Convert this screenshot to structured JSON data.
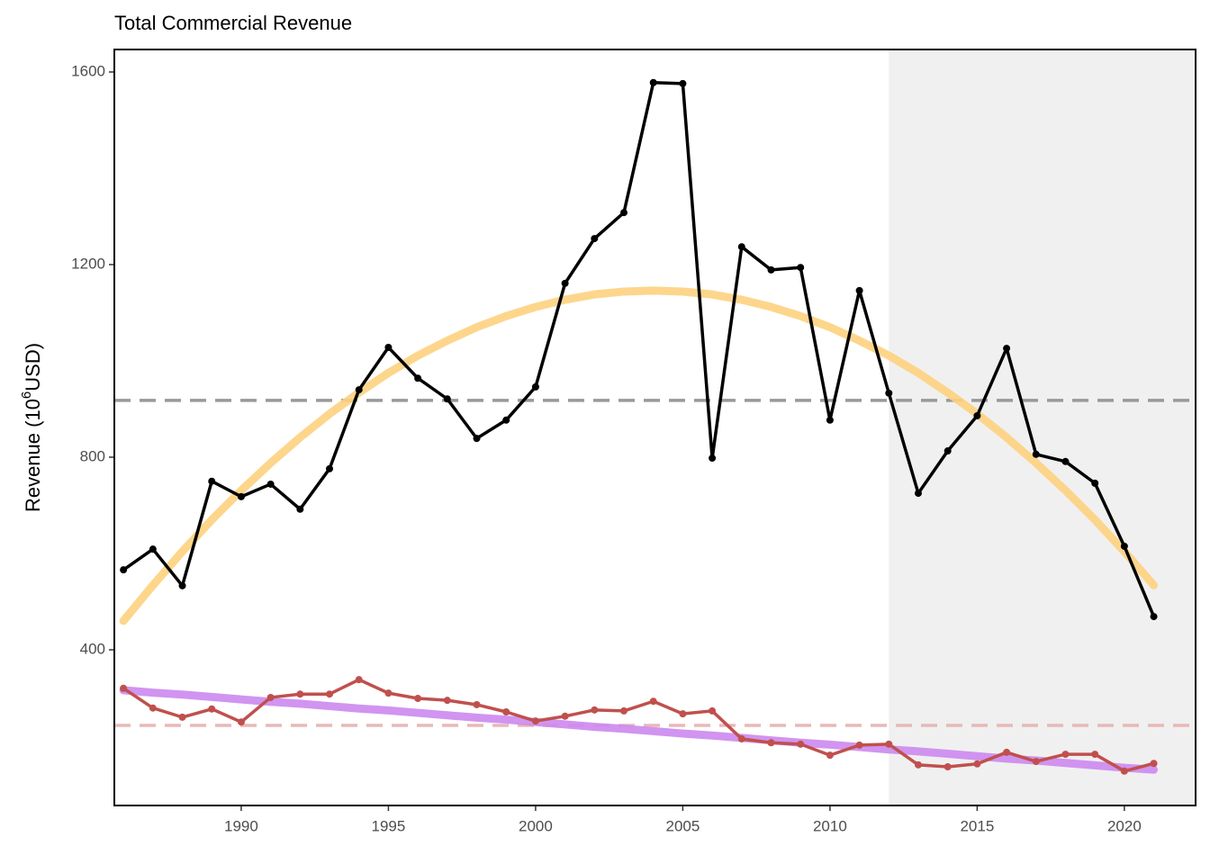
{
  "chart_data": {
    "type": "line",
    "title": "Total Commercial Revenue",
    "ylabel": [
      "Revenue (10",
      "6",
      "USD)"
    ],
    "x": [
      1986,
      1987,
      1988,
      1989,
      1990,
      1991,
      1992,
      1993,
      1994,
      1995,
      1996,
      1997,
      1998,
      1999,
      2000,
      2001,
      2002,
      2003,
      2004,
      2005,
      2006,
      2007,
      2008,
      2009,
      2010,
      2011,
      2012,
      2013,
      2014,
      2015,
      2016,
      2017,
      2018,
      2019,
      2020,
      2021
    ],
    "xlim": [
      1985.69,
      2022.42
    ],
    "xticks": [
      1990,
      1995,
      2000,
      2005,
      2010,
      2015,
      2020
    ],
    "ylim": [
      76.6,
      1646.7
    ],
    "yticks": [
      400,
      800,
      1200,
      1600
    ],
    "shade_from": 2012,
    "shade_color": "#f0f0f0",
    "hlines": [
      {
        "value": 918,
        "color": "#999999"
      },
      {
        "value": 243,
        "color": "#e8b8b8"
      }
    ],
    "series": [
      {
        "color": "#fdd27f",
        "points": false,
        "values": [
          460,
          534,
          604,
          670,
          731,
          788,
          841,
          890,
          934,
          975,
          1011,
          1042,
          1070,
          1093,
          1112,
          1127,
          1138,
          1144,
          1146,
          1144,
          1138,
          1127,
          1112,
          1093,
          1070,
          1042,
          1011,
          975,
          934,
          890,
          841,
          788,
          731,
          670,
          604,
          534
        ]
      },
      {
        "color": "#cc88ee",
        "points": false,
        "values": [
          316,
          311,
          307,
          302,
          297,
          292,
          288,
          283,
          278,
          274,
          269,
          264,
          259,
          255,
          250,
          245,
          240,
          236,
          231,
          226,
          222,
          217,
          212,
          207,
          203,
          198,
          193,
          189,
          184,
          179,
          174,
          170,
          165,
          160,
          155,
          151
        ]
      },
      {
        "color": "#000000",
        "points": true,
        "values": [
          566,
          609,
          533,
          750,
          718,
          744,
          692,
          776,
          940,
          1028,
          964,
          921,
          839,
          877,
          946,
          1161,
          1254,
          1308,
          1578,
          1576,
          798,
          1237,
          1189,
          1194,
          877,
          1146,
          933,
          725,
          813,
          886,
          1026,
          806,
          791,
          746,
          615,
          469
        ]
      },
      {
        "color": "#c0504d",
        "points": true,
        "values": [
          320,
          279,
          260,
          277,
          250,
          301,
          308,
          308,
          338,
          310,
          299,
          295,
          286,
          271,
          252,
          262,
          275,
          273,
          293,
          267,
          273,
          215,
          207,
          204,
          181,
          202,
          204,
          161,
          157,
          163,
          187,
          168,
          183,
          183,
          148,
          164
        ]
      }
    ]
  }
}
